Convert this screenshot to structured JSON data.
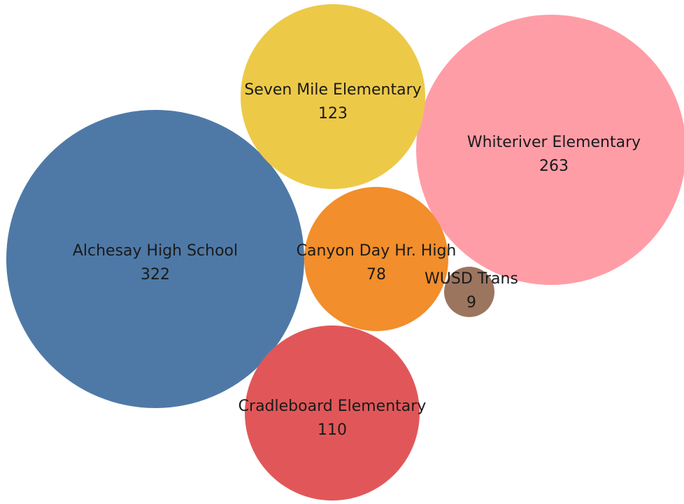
{
  "chart_data": {
    "type": "bubble",
    "items": [
      {
        "label": "Alchesay High School",
        "value": 322,
        "color": "#4e79a7"
      },
      {
        "label": "Whiteriver Elementary",
        "value": 263,
        "color": "#ff9da7"
      },
      {
        "label": "Seven Mile Elementary",
        "value": 123,
        "color": "#edc948"
      },
      {
        "label": "Cradleboard Elementary",
        "value": 110,
        "color": "#e15759"
      },
      {
        "label": "Canyon Day Hr. High",
        "value": 78,
        "color": "#f28e2b"
      },
      {
        "label": "WUSD Trans",
        "value": 9,
        "color": "#9c755f"
      }
    ]
  }
}
